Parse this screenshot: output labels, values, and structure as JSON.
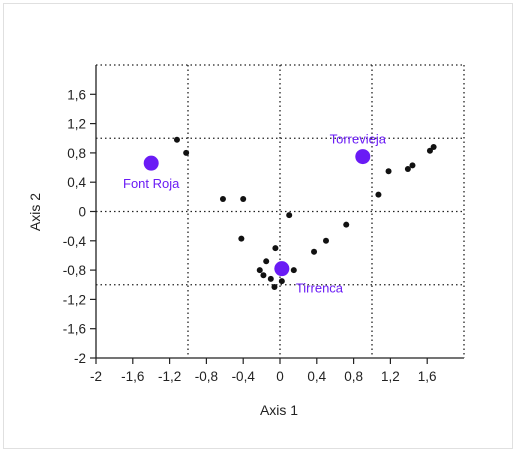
{
  "chart_data": {
    "type": "scatter",
    "title": "",
    "xlabel": "Axis 1",
    "ylabel": "Axis 2",
    "xlim": [
      -2,
      2
    ],
    "ylim": [
      -2,
      2
    ],
    "x_ticks": [
      "-2",
      "-1,6",
      "-1,2",
      "-0,8",
      "-0,4",
      "0",
      "0,4",
      "0,8",
      "1,2",
      "1,6"
    ],
    "y_ticks": [
      "1,6",
      "1,2",
      "0,8",
      "0,4",
      "0",
      "-0,4",
      "-0,8",
      "-1,2",
      "-1,6",
      "-2"
    ],
    "x_tick_values": [
      -2,
      -1.6,
      -1.2,
      -0.8,
      -0.4,
      0,
      0.4,
      0.8,
      1.2,
      1.6
    ],
    "y_tick_values": [
      1.6,
      1.2,
      0.8,
      0.4,
      0,
      -0.4,
      -0.8,
      -1.2,
      -1.6,
      -2
    ],
    "reference_lines_x": [
      -1,
      0,
      1
    ],
    "reference_lines_y": [
      1,
      0,
      -1
    ],
    "grid": false,
    "colors": {
      "sites": "#6a1bf5",
      "samples": "#111111"
    },
    "series": [
      {
        "name": "",
        "kind": "samples",
        "points": [
          [
            -1.12,
            0.98
          ],
          [
            -1.02,
            0.8
          ],
          [
            -0.62,
            0.17
          ],
          [
            -0.4,
            0.17
          ],
          [
            -0.42,
            -0.37
          ],
          [
            0.1,
            -0.05
          ],
          [
            -0.05,
            -0.5
          ],
          [
            -0.15,
            -0.68
          ],
          [
            -0.22,
            -0.8
          ],
          [
            -0.18,
            -0.87
          ],
          [
            -0.1,
            -0.92
          ],
          [
            -0.06,
            -1.03
          ],
          [
            0.02,
            -0.95
          ],
          [
            0.15,
            -0.8
          ],
          [
            0.37,
            -0.55
          ],
          [
            0.5,
            -0.4
          ],
          [
            0.72,
            -0.18
          ],
          [
            1.07,
            0.23
          ],
          [
            1.18,
            0.55
          ],
          [
            1.39,
            0.58
          ],
          [
            1.44,
            0.63
          ],
          [
            1.63,
            0.83
          ],
          [
            1.67,
            0.88
          ]
        ]
      },
      {
        "name": "",
        "kind": "sites",
        "points": [
          {
            "x": -1.4,
            "y": 0.66,
            "label": "Font Roja",
            "anchor": "below"
          },
          {
            "x": 0.9,
            "y": 0.75,
            "label": "Torrevieja",
            "anchor": "above"
          },
          {
            "x": 0.02,
            "y": -0.78,
            "label": "Tirrenca",
            "anchor": "right-below"
          }
        ]
      }
    ]
  }
}
